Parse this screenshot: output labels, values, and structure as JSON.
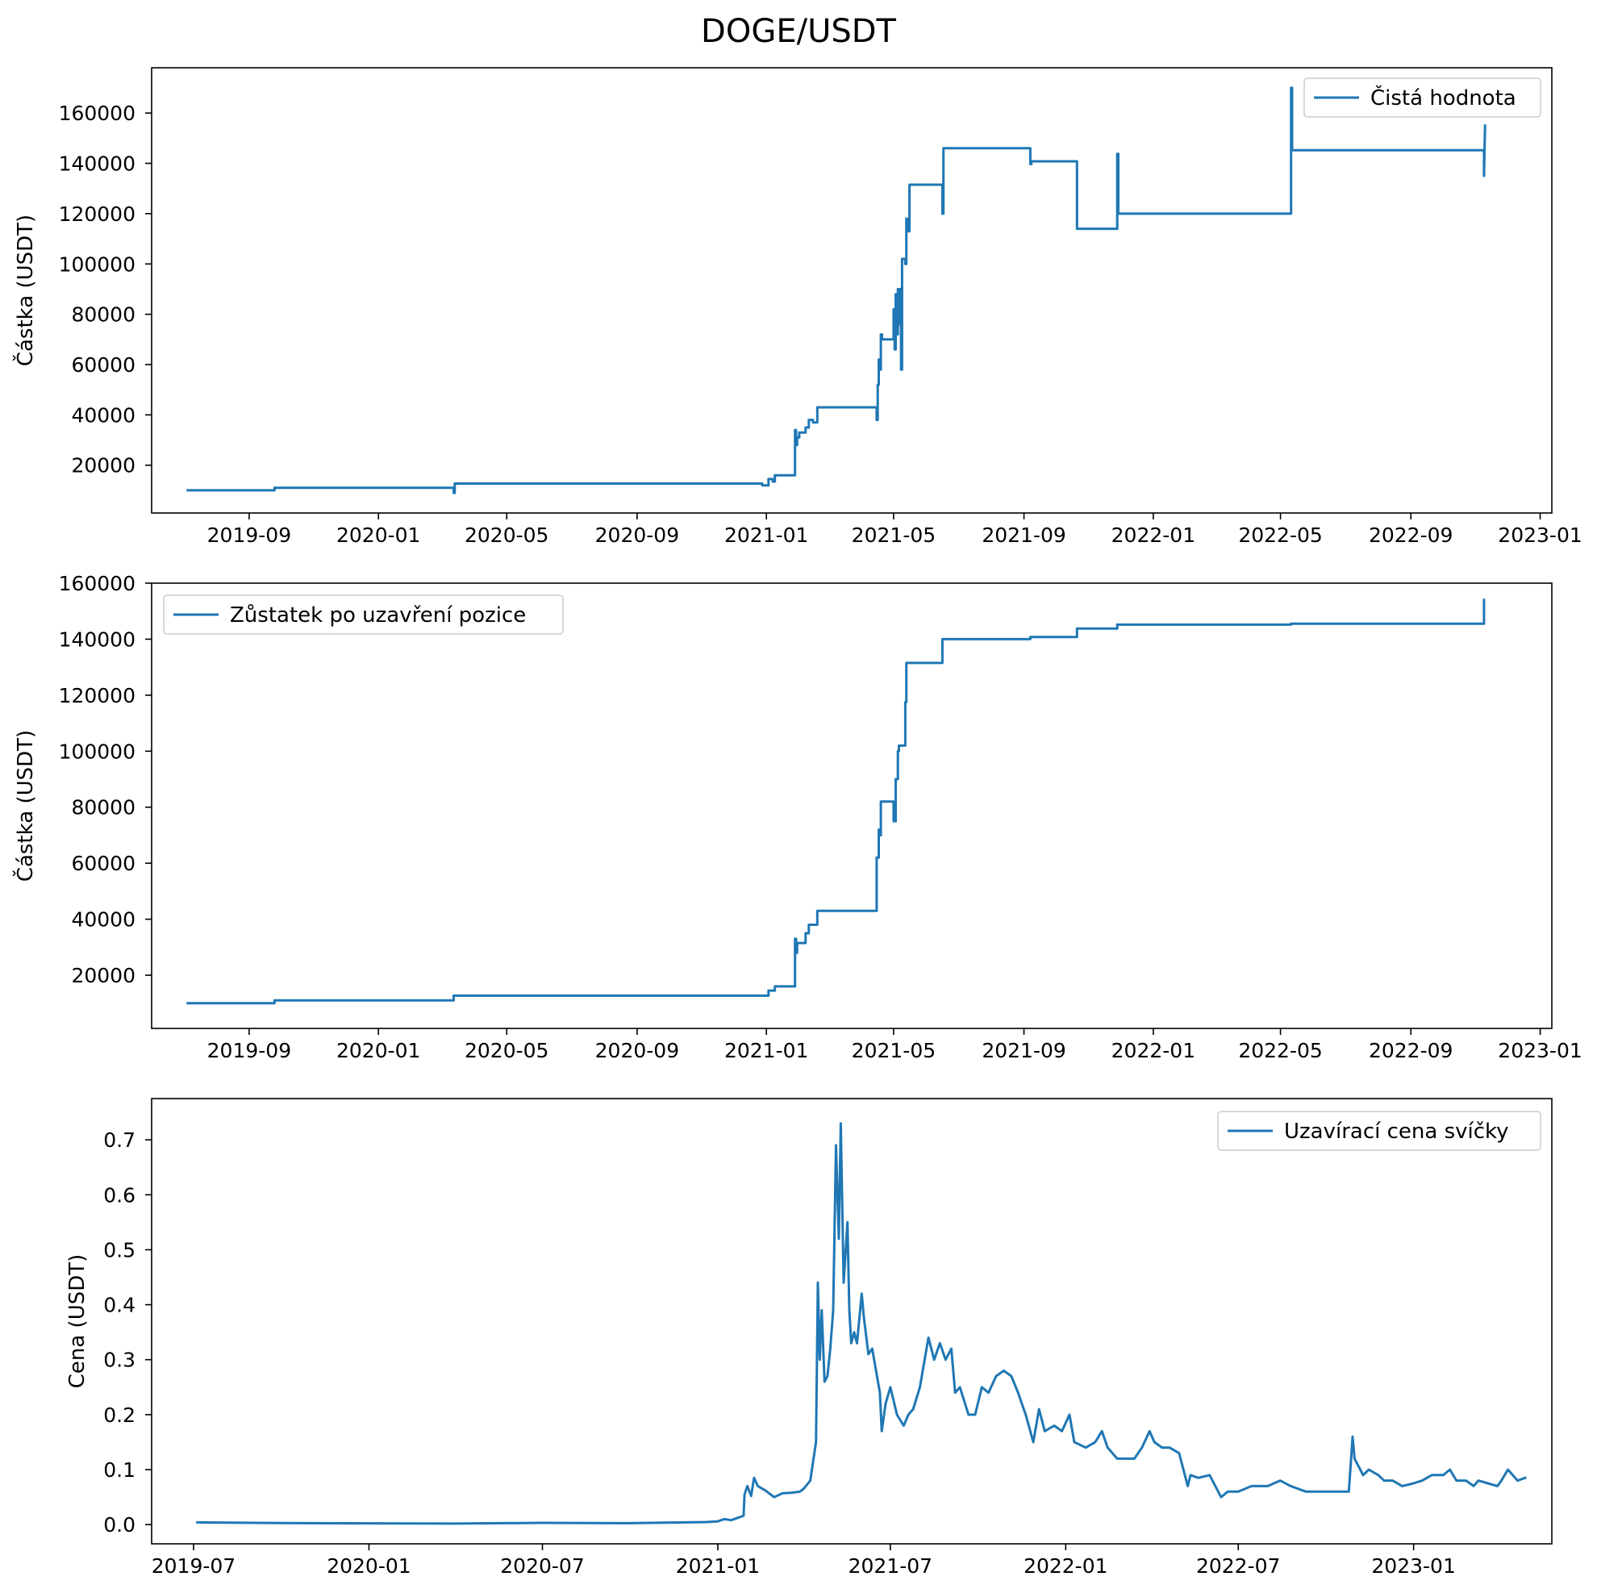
{
  "suptitle": "DOGE/USDT",
  "colors": {
    "series": "#1f77b4",
    "axes": "#000000",
    "legend_border": "#cccccc"
  },
  "chart_data": [
    {
      "type": "line",
      "title": "",
      "xlabel": "",
      "ylabel": "Částka (USDT)",
      "x_type": "date",
      "xlim": [
        "2019-06-01",
        "2023-01-12"
      ],
      "ylim": [
        1000,
        178000
      ],
      "xticks": [
        "2019-09-01",
        "2020-01-01",
        "2020-05-01",
        "2020-09-01",
        "2021-01-01",
        "2021-05-01",
        "2021-09-01",
        "2022-01-01",
        "2022-05-01",
        "2022-09-01",
        "2023-01-01"
      ],
      "xtick_labels": [
        "2019-09",
        "2020-01",
        "2020-05",
        "2020-09",
        "2021-01",
        "2021-05",
        "2021-09",
        "2022-01",
        "2022-05",
        "2022-09",
        "2023-01"
      ],
      "yticks": [
        20000,
        40000,
        60000,
        80000,
        100000,
        120000,
        140000,
        160000
      ],
      "ytick_labels": [
        "20000",
        "40000",
        "60000",
        "80000",
        "100000",
        "120000",
        "140000",
        "160000"
      ],
      "grid": false,
      "legend_loc": "upper right",
      "series": [
        {
          "name": "Čistá hodnota",
          "x": [
            "2019-07-05",
            "2019-09-25",
            "2019-09-25",
            "2020-03-12",
            "2020-03-12",
            "2020-03-13",
            "2020-03-13",
            "2020-12-28",
            "2020-12-28",
            "2021-01-03",
            "2021-01-03",
            "2021-01-07",
            "2021-01-07",
            "2021-01-09",
            "2021-01-09",
            "2021-01-28",
            "2021-01-28",
            "2021-01-29",
            "2021-01-29",
            "2021-01-30",
            "2021-01-30",
            "2021-02-01",
            "2021-02-01",
            "2021-02-07",
            "2021-02-07",
            "2021-02-10",
            "2021-02-10",
            "2021-02-14",
            "2021-02-14",
            "2021-02-18",
            "2021-02-18",
            "2021-04-15",
            "2021-04-15",
            "2021-04-16",
            "2021-04-16",
            "2021-04-17",
            "2021-04-17",
            "2021-04-18",
            "2021-04-18",
            "2021-04-19",
            "2021-04-19",
            "2021-04-20",
            "2021-04-20",
            "2021-05-01",
            "2021-05-01",
            "2021-05-02",
            "2021-05-02",
            "2021-05-03",
            "2021-05-03",
            "2021-05-04",
            "2021-05-04",
            "2021-05-05",
            "2021-05-05",
            "2021-05-06",
            "2021-05-06",
            "2021-05-07",
            "2021-05-07",
            "2021-05-08",
            "2021-05-08",
            "2021-05-09",
            "2021-05-09",
            "2021-05-12",
            "2021-05-12",
            "2021-05-13",
            "2021-05-13",
            "2021-05-15",
            "2021-05-15",
            "2021-05-16",
            "2021-05-16",
            "2021-06-16",
            "2021-06-16",
            "2021-06-17",
            "2021-06-17",
            "2021-09-07",
            "2021-09-07",
            "2021-09-08",
            "2021-09-08",
            "2021-10-21",
            "2021-10-21",
            "2021-11-28",
            "2021-11-28",
            "2021-11-29",
            "2021-11-29",
            "2022-05-11",
            "2022-05-11",
            "2022-05-12",
            "2022-05-12",
            "2022-11-09",
            "2022-11-09",
            "2022-11-10"
          ],
          "y": [
            10000,
            10000,
            11000,
            11000,
            9000,
            9000,
            12700,
            12700,
            12000,
            12000,
            14500,
            14500,
            13500,
            13500,
            16000,
            16000,
            34000,
            34000,
            28000,
            28000,
            31000,
            31000,
            33000,
            33000,
            35000,
            35000,
            38000,
            38000,
            37000,
            37000,
            43000,
            43000,
            38000,
            38000,
            52000,
            52000,
            62000,
            62000,
            58000,
            58000,
            72000,
            72000,
            70000,
            70000,
            82000,
            82000,
            66000,
            66000,
            88000,
            88000,
            72000,
            72000,
            90000,
            90000,
            76000,
            76000,
            90000,
            90000,
            58000,
            58000,
            102000,
            102000,
            100000,
            100000,
            118000,
            118000,
            113000,
            113000,
            131500,
            131500,
            120000,
            120000,
            146000,
            146000,
            139700,
            139700,
            140800,
            140800,
            114000,
            114000,
            143800,
            143800,
            120000,
            120000,
            170000,
            170000,
            145200,
            145200,
            135000,
            155000
          ]
        }
      ]
    },
    {
      "type": "line",
      "title": "",
      "xlabel": "",
      "ylabel": "Částka (USDT)",
      "x_type": "date",
      "xlim": [
        "2019-06-01",
        "2023-01-12"
      ],
      "ylim": [
        1000,
        160000
      ],
      "xticks": [
        "2019-09-01",
        "2020-01-01",
        "2020-05-01",
        "2020-09-01",
        "2021-01-01",
        "2021-05-01",
        "2021-09-01",
        "2022-01-01",
        "2022-05-01",
        "2022-09-01",
        "2023-01-01"
      ],
      "xtick_labels": [
        "2019-09",
        "2020-01",
        "2020-05",
        "2020-09",
        "2021-01",
        "2021-05",
        "2021-09",
        "2022-01",
        "2022-05",
        "2022-09",
        "2023-01"
      ],
      "yticks": [
        20000,
        40000,
        60000,
        80000,
        100000,
        120000,
        140000,
        160000
      ],
      "ytick_labels": [
        "20000",
        "40000",
        "60000",
        "80000",
        "100000",
        "120000",
        "140000",
        "160000"
      ],
      "grid": false,
      "legend_loc": "upper left",
      "series": [
        {
          "name": "Zůstatek po uzavření pozice",
          "x": [
            "2019-07-05",
            "2019-09-25",
            "2019-09-25",
            "2020-03-12",
            "2020-03-12",
            "2021-01-03",
            "2021-01-03",
            "2021-01-09",
            "2021-01-09",
            "2021-01-28",
            "2021-01-28",
            "2021-01-29",
            "2021-01-29",
            "2021-01-30",
            "2021-01-30",
            "2021-02-07",
            "2021-02-07",
            "2021-02-10",
            "2021-02-10",
            "2021-02-18",
            "2021-02-18",
            "2021-04-15",
            "2021-04-15",
            "2021-04-17",
            "2021-04-17",
            "2021-04-18",
            "2021-04-18",
            "2021-04-19",
            "2021-04-19",
            "2021-05-01",
            "2021-05-01",
            "2021-05-03",
            "2021-05-03",
            "2021-05-05",
            "2021-05-05",
            "2021-05-06",
            "2021-05-06",
            "2021-05-12",
            "2021-05-12",
            "2021-05-13",
            "2021-05-13",
            "2021-06-16",
            "2021-06-16",
            "2021-09-07",
            "2021-09-07",
            "2021-10-21",
            "2021-10-21",
            "2021-11-28",
            "2021-11-28",
            "2022-05-11",
            "2022-05-11",
            "2022-11-09",
            "2022-11-09"
          ],
          "y": [
            10000,
            10000,
            11000,
            11000,
            12700,
            12700,
            14500,
            14500,
            16000,
            16000,
            33000,
            33000,
            28000,
            28000,
            31500,
            31500,
            35000,
            35000,
            38000,
            38000,
            43000,
            43000,
            62000,
            62000,
            72000,
            72000,
            70000,
            70000,
            82000,
            82000,
            75000,
            75000,
            90000,
            90000,
            100000,
            100000,
            102000,
            102000,
            117500,
            117500,
            131500,
            131500,
            140000,
            140000,
            140800,
            140800,
            143800,
            143800,
            145200,
            145200,
            145500,
            145500,
            154000
          ]
        }
      ]
    },
    {
      "type": "line",
      "title": "",
      "xlabel": "",
      "ylabel": "Cena (USDT)",
      "x_type": "date",
      "xlim": [
        "2019-05-18",
        "2023-05-26"
      ],
      "ylim": [
        -0.035,
        0.775
      ],
      "xticks": [
        "2019-07-01",
        "2020-01-01",
        "2020-07-01",
        "2021-01-01",
        "2021-07-01",
        "2022-01-01",
        "2022-07-01",
        "2023-01-01"
      ],
      "xtick_labels": [
        "2019-07",
        "2020-01",
        "2020-07",
        "2021-01",
        "2021-07",
        "2022-01",
        "2022-07",
        "2023-01"
      ],
      "yticks": [
        0.0,
        0.1,
        0.2,
        0.3,
        0.4,
        0.5,
        0.6,
        0.7
      ],
      "ytick_labels": [
        "0.0",
        "0.1",
        "0.2",
        "0.3",
        "0.4",
        "0.5",
        "0.6",
        "0.7"
      ],
      "grid": false,
      "legend_loc": "upper right",
      "series": [
        {
          "name": "Uzavírací cena svíčky",
          "x": [
            "2019-07-05",
            "2019-10-01",
            "2020-01-01",
            "2020-04-01",
            "2020-07-01",
            "2020-10-01",
            "2020-12-20",
            "2021-01-01",
            "2021-01-08",
            "2021-01-15",
            "2021-01-28",
            "2021-01-29",
            "2021-02-01",
            "2021-02-05",
            "2021-02-08",
            "2021-02-12",
            "2021-02-20",
            "2021-03-01",
            "2021-03-10",
            "2021-03-20",
            "2021-03-28",
            "2021-04-01",
            "2021-04-08",
            "2021-04-14",
            "2021-04-16",
            "2021-04-18",
            "2021-04-20",
            "2021-04-23",
            "2021-04-26",
            "2021-04-29",
            "2021-05-02",
            "2021-05-05",
            "2021-05-08",
            "2021-05-10",
            "2021-05-13",
            "2021-05-17",
            "2021-05-19",
            "2021-05-21",
            "2021-05-24",
            "2021-05-27",
            "2021-06-01",
            "2021-06-03",
            "2021-06-08",
            "2021-06-12",
            "2021-06-16",
            "2021-06-20",
            "2021-06-22",
            "2021-06-26",
            "2021-07-01",
            "2021-07-08",
            "2021-07-15",
            "2021-07-20",
            "2021-07-25",
            "2021-08-01",
            "2021-08-10",
            "2021-08-16",
            "2021-08-22",
            "2021-08-28",
            "2021-09-03",
            "2021-09-07",
            "2021-09-12",
            "2021-09-21",
            "2021-09-28",
            "2021-10-05",
            "2021-10-12",
            "2021-10-20",
            "2021-10-28",
            "2021-11-05",
            "2021-11-12",
            "2021-11-20",
            "2021-11-28",
            "2021-12-04",
            "2021-12-10",
            "2021-12-20",
            "2021-12-28",
            "2022-01-05",
            "2022-01-10",
            "2022-01-22",
            "2022-02-01",
            "2022-02-08",
            "2022-02-14",
            "2022-02-24",
            "2022-03-05",
            "2022-03-14",
            "2022-03-22",
            "2022-03-30",
            "2022-04-04",
            "2022-04-12",
            "2022-04-20",
            "2022-04-30",
            "2022-05-09",
            "2022-05-12",
            "2022-05-20",
            "2022-06-01",
            "2022-06-13",
            "2022-06-20",
            "2022-07-01",
            "2022-07-15",
            "2022-08-01",
            "2022-08-14",
            "2022-08-25",
            "2022-09-10",
            "2022-09-25",
            "2022-10-10",
            "2022-10-25",
            "2022-10-29",
            "2022-10-31",
            "2022-11-06",
            "2022-11-09",
            "2022-11-15",
            "2022-11-25",
            "2022-12-01",
            "2022-12-10",
            "2022-12-20",
            "2023-01-01",
            "2023-01-10",
            "2023-01-20",
            "2023-02-01",
            "2023-02-08",
            "2023-02-15",
            "2023-02-25",
            "2023-03-05",
            "2023-03-10",
            "2023-03-20",
            "2023-03-30",
            "2023-04-03",
            "2023-04-10",
            "2023-04-20",
            "2023-04-28"
          ],
          "y": [
            0.004,
            0.0027,
            0.0023,
            0.0018,
            0.0032,
            0.0026,
            0.0046,
            0.006,
            0.01,
            0.008,
            0.016,
            0.055,
            0.07,
            0.052,
            0.085,
            0.07,
            0.062,
            0.05,
            0.057,
            0.058,
            0.06,
            0.065,
            0.08,
            0.15,
            0.44,
            0.3,
            0.39,
            0.26,
            0.27,
            0.32,
            0.39,
            0.69,
            0.52,
            0.73,
            0.44,
            0.55,
            0.39,
            0.33,
            0.35,
            0.33,
            0.42,
            0.38,
            0.31,
            0.32,
            0.28,
            0.24,
            0.17,
            0.22,
            0.25,
            0.2,
            0.18,
            0.2,
            0.21,
            0.25,
            0.34,
            0.3,
            0.33,
            0.3,
            0.32,
            0.24,
            0.25,
            0.2,
            0.2,
            0.25,
            0.24,
            0.27,
            0.28,
            0.27,
            0.24,
            0.2,
            0.15,
            0.21,
            0.17,
            0.18,
            0.17,
            0.2,
            0.15,
            0.14,
            0.15,
            0.17,
            0.14,
            0.12,
            0.12,
            0.12,
            0.14,
            0.17,
            0.15,
            0.14,
            0.14,
            0.13,
            0.07,
            0.09,
            0.085,
            0.09,
            0.05,
            0.06,
            0.06,
            0.07,
            0.07,
            0.08,
            0.07,
            0.06,
            0.06,
            0.06,
            0.06,
            0.16,
            0.12,
            0.1,
            0.09,
            0.1,
            0.09,
            0.08,
            0.08,
            0.07,
            0.075,
            0.08,
            0.09,
            0.09,
            0.1,
            0.08,
            0.08,
            0.07,
            0.08,
            0.075,
            0.07,
            0.08,
            0.1,
            0.08,
            0.085
          ]
        }
      ]
    }
  ]
}
